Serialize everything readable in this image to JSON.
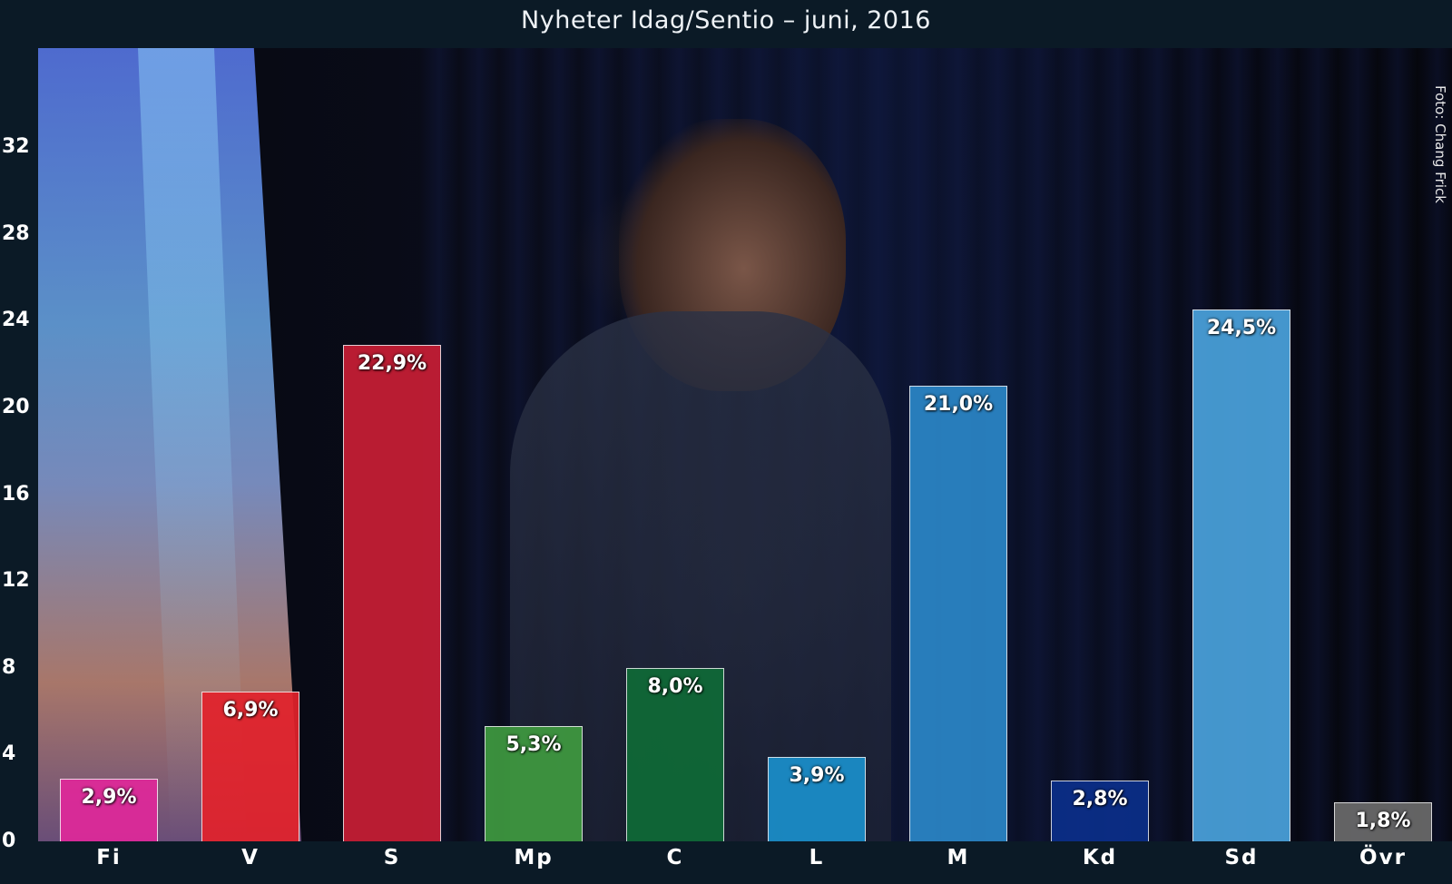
{
  "chart_data": {
    "type": "bar",
    "title": "Nyheter Idag/Sentio – juni, 2016",
    "xlabel": "",
    "ylabel": "",
    "ylim": [
      0,
      36
    ],
    "yticks": [
      0,
      4,
      8,
      12,
      16,
      20,
      24,
      28,
      32
    ],
    "grid": false,
    "legend": "none",
    "categories": [
      "Fi",
      "V",
      "S",
      "Mp",
      "C",
      "L",
      "M",
      "Kd",
      "Sd",
      "Övr"
    ],
    "values": [
      2.9,
      6.9,
      22.9,
      5.3,
      8.0,
      3.9,
      21.0,
      2.8,
      24.5,
      1.8
    ],
    "data_labels": [
      "2,9%",
      "6,9%",
      "22,9%",
      "5,3%",
      "8,0%",
      "3,9%",
      "21,0%",
      "2,8%",
      "24,5%",
      "1,8%"
    ],
    "colors": [
      "#e0289a",
      "#e3222b",
      "#c81e35",
      "#3f9a40",
      "#0f6a37",
      "#1a8fcb",
      "#2b86c7",
      "#0b2f8a",
      "#4aa2dc",
      "#6b6b6b"
    ]
  },
  "photo_credit": "Foto: Chang Frick"
}
